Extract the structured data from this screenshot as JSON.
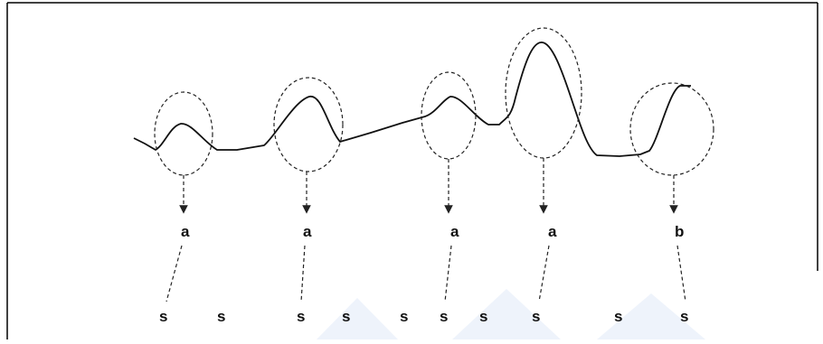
{
  "peak_labels": [
    "a",
    "a",
    "a",
    "a",
    "b"
  ],
  "symbol_labels": [
    "s",
    "s",
    "s",
    "s",
    "s",
    "s",
    "s",
    "s",
    "s",
    "s"
  ],
  "colors": {
    "frame_border": "#000000",
    "curve": "#111111",
    "dashed": "#222222",
    "watermark": "#e8eef8"
  }
}
